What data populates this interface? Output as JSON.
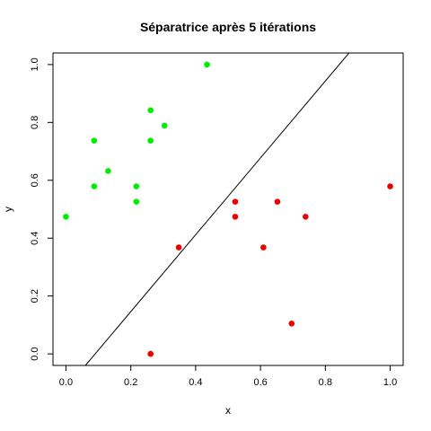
{
  "chart_data": {
    "type": "scatter",
    "title": "Séparatrice après 5 itérations",
    "xlabel": "x",
    "ylabel": "y",
    "xlim": [
      -0.04,
      1.04
    ],
    "ylim": [
      -0.04,
      1.04
    ],
    "x_ticks": [
      "0.0",
      "0.2",
      "0.4",
      "0.6",
      "0.8",
      "1.0"
    ],
    "y_ticks": [
      "0.0",
      "0.2",
      "0.4",
      "0.6",
      "0.8",
      "1.0"
    ],
    "grid": false,
    "legend": "none",
    "series": [
      {
        "color": "#00ee00",
        "points": [
          {
            "x": 0.0,
            "y": 0.474
          },
          {
            "x": 0.087,
            "y": 0.737
          },
          {
            "x": 0.087,
            "y": 0.579
          },
          {
            "x": 0.13,
            "y": 0.632
          },
          {
            "x": 0.217,
            "y": 0.579
          },
          {
            "x": 0.217,
            "y": 0.526
          },
          {
            "x": 0.261,
            "y": 0.842
          },
          {
            "x": 0.261,
            "y": 0.737
          },
          {
            "x": 0.304,
            "y": 0.789
          },
          {
            "x": 0.435,
            "y": 1.0
          }
        ]
      },
      {
        "color": "#ee0000",
        "points": [
          {
            "x": 0.261,
            "y": 0.0
          },
          {
            "x": 0.348,
            "y": 0.368
          },
          {
            "x": 0.522,
            "y": 0.526
          },
          {
            "x": 0.522,
            "y": 0.474
          },
          {
            "x": 0.609,
            "y": 0.368
          },
          {
            "x": 0.652,
            "y": 0.526
          },
          {
            "x": 0.696,
            "y": 0.105
          },
          {
            "x": 0.739,
            "y": 0.474
          },
          {
            "x": 1.0,
            "y": 0.579
          }
        ]
      }
    ],
    "separator_line": {
      "color": "#000000",
      "points": [
        {
          "x": 0.06,
          "y": -0.04
        },
        {
          "x": 0.873,
          "y": 1.04
        }
      ]
    }
  }
}
